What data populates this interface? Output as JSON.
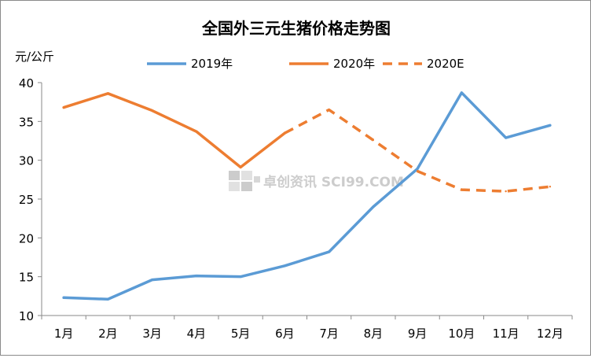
{
  "chart_data": {
    "type": "line",
    "title": "全国外三元生猪价格走势图",
    "ylabel": "元/公斤",
    "xlabel": "",
    "categories": [
      "1月",
      "2月",
      "3月",
      "4月",
      "5月",
      "6月",
      "7月",
      "8月",
      "9月",
      "10月",
      "11月",
      "12月"
    ],
    "ylim": [
      10,
      40
    ],
    "yticks": [
      10,
      15,
      20,
      25,
      30,
      35,
      40
    ],
    "grid": false,
    "legend_position": "top",
    "watermark": "卓创资讯 SCI99.COM",
    "series": [
      {
        "name": "2019年",
        "color": "#5b9bd5",
        "style": "solid",
        "values": [
          12.3,
          12.1,
          14.6,
          15.1,
          15.0,
          16.4,
          18.2,
          24.0,
          28.9,
          38.7,
          32.9,
          34.5
        ]
      },
      {
        "name": "2020年",
        "color": "#ed7d31",
        "style": "solid",
        "values": [
          36.8,
          38.6,
          36.4,
          33.7,
          29.1,
          33.5,
          null,
          null,
          null,
          null,
          null,
          null
        ]
      },
      {
        "name": "2020E",
        "color": "#ed7d31",
        "style": "dashed",
        "values": [
          null,
          null,
          null,
          null,
          null,
          33.5,
          36.5,
          32.6,
          28.6,
          26.2,
          26.0,
          26.6
        ]
      }
    ]
  }
}
